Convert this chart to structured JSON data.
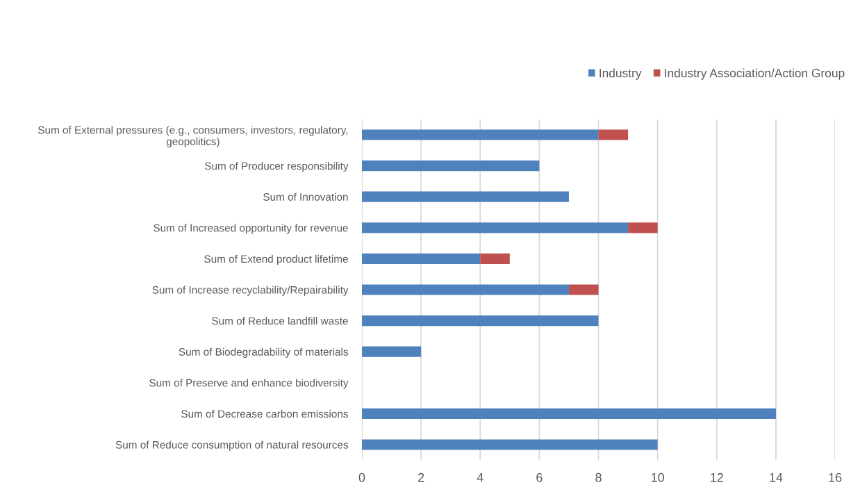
{
  "chart_data": {
    "type": "bar",
    "orientation": "horizontal",
    "stacked": true,
    "categories": [
      "Sum of External pressures (e.g., consumers, investors, regulatory,\ngeopolitics)",
      "Sum of Producer responsibility",
      "Sum of Innovation",
      "Sum of Increased opportunity for revenue",
      "Sum of Extend product lifetime",
      "Sum of Increase recyclability/Repairability",
      "Sum of Reduce landfill waste",
      "Sum of Biodegradability of materials",
      "Sum of Preserve and enhance biodiversity",
      "Sum of Decrease carbon emissions",
      "Sum of Reduce consumption of natural resources"
    ],
    "series": [
      {
        "name": "Industry",
        "color": "#4f81bd",
        "values": [
          8,
          6,
          7,
          9,
          4,
          7,
          8,
          2,
          null,
          14,
          10
        ]
      },
      {
        "name": "Industry Association/Action Group",
        "color": "#c0504d",
        "values": [
          1,
          null,
          null,
          1,
          1,
          1,
          null,
          null,
          null,
          null,
          null
        ]
      }
    ],
    "xlim": [
      0,
      16
    ],
    "xticks": [
      0,
      2,
      4,
      6,
      8,
      10,
      12,
      14,
      16
    ],
    "grid": "x",
    "legend": "top right"
  }
}
